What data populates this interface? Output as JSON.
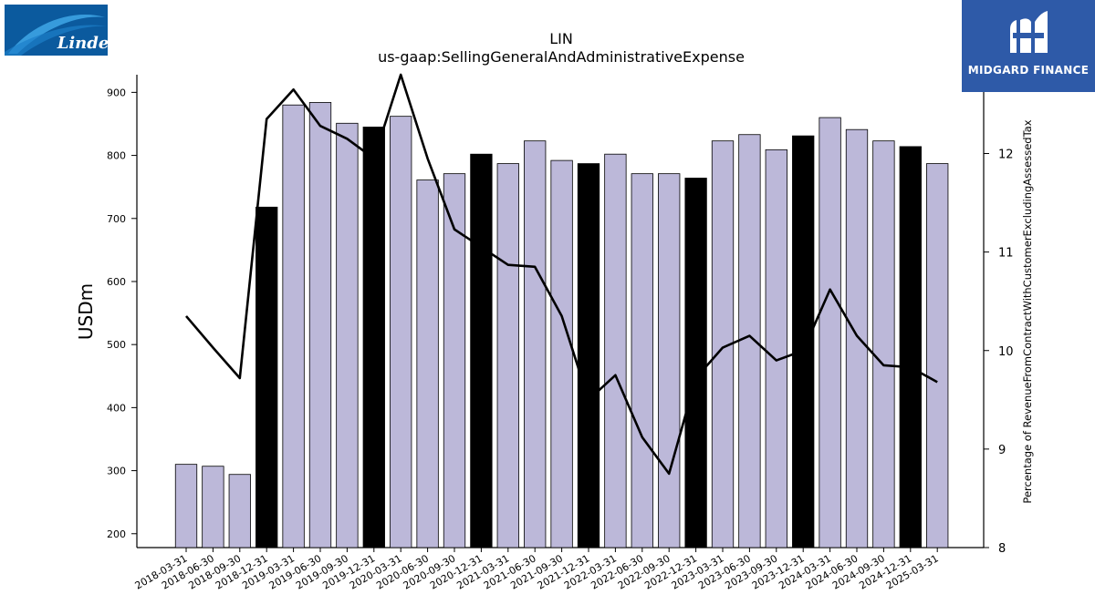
{
  "header": {
    "ticker": "LIN",
    "subtitle": "us-gaap:SellingGeneralAndAdministrativeExpense",
    "left_logo_text": "Linde",
    "right_brand": "MIDGARD FINANCE"
  },
  "colors": {
    "bar_default": "#bcb8d9",
    "bar_highlight": "#000000",
    "line": "#000000",
    "left_logo_bg": "#0b5a9e",
    "right_logo_bg": "#2e5aa8"
  },
  "chart_data": {
    "type": "bar",
    "categories": [
      "2018-03-31",
      "2018-06-30",
      "2018-09-30",
      "2018-12-31",
      "2019-03-31",
      "2019-06-30",
      "2019-09-30",
      "2019-12-31",
      "2020-03-31",
      "2020-06-30",
      "2020-09-30",
      "2020-12-31",
      "2021-03-31",
      "2021-06-30",
      "2021-09-30",
      "2021-12-31",
      "2022-03-31",
      "2022-06-30",
      "2022-09-30",
      "2022-12-31",
      "2023-03-31",
      "2023-06-30",
      "2023-09-30",
      "2023-12-31",
      "2024-03-31",
      "2024-06-30",
      "2024-09-30",
      "2024-12-31",
      "2025-03-31"
    ],
    "values": [
      310,
      307,
      294,
      718,
      880,
      884,
      851,
      845,
      862,
      761,
      771,
      802,
      787,
      823,
      792,
      787,
      802,
      771,
      771,
      764,
      823,
      833,
      809,
      831,
      860,
      841,
      823,
      814,
      787
    ],
    "highlight": [
      false,
      false,
      false,
      true,
      false,
      false,
      false,
      true,
      false,
      false,
      false,
      true,
      false,
      false,
      false,
      true,
      false,
      false,
      false,
      true,
      false,
      false,
      false,
      true,
      false,
      false,
      false,
      true,
      false
    ],
    "ylabel": "USDm",
    "ylim": [
      178,
      928
    ],
    "yticks": [
      200,
      300,
      400,
      500,
      600,
      700,
      800,
      900
    ],
    "secondary": {
      "type": "line",
      "ylabel": "Percentage of RevenueFromContractWithCustomerExcludingAssessedTax",
      "ylim": [
        8.0,
        12.8
      ],
      "yticks": [
        8,
        9,
        10,
        11,
        12
      ],
      "values": [
        10.35,
        10.03,
        9.72,
        12.35,
        12.65,
        12.28,
        12.15,
        11.95,
        12.8,
        11.95,
        11.23,
        11.05,
        10.87,
        10.85,
        10.35,
        9.5,
        9.75,
        9.12,
        8.75,
        9.72,
        10.03,
        10.15,
        9.9,
        10.0,
        10.62,
        10.15,
        9.85,
        9.83,
        9.68
      ]
    }
  }
}
